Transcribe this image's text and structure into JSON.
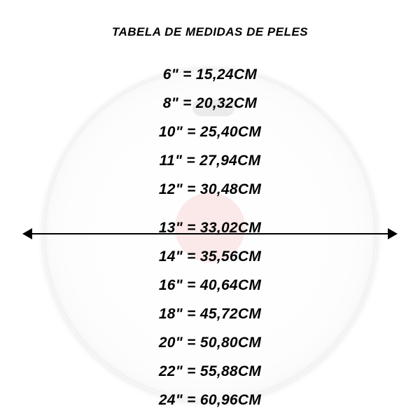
{
  "infographic": {
    "type": "infographic",
    "title": "TABELA DE MEDIDAS DE PELES",
    "title_fontsize": 17,
    "row_fontsize": 21,
    "font_style": "italic bold",
    "background_color": "#ffffff",
    "drumhead_color": "#fdfdfd",
    "accent_circle_color": "#f7d6d6",
    "text_color": "#000000",
    "arrow_color": "#000000",
    "measurements": [
      {
        "inches": "6\"",
        "cm": "15,24CM"
      },
      {
        "inches": "8\"",
        "cm": "20,32CM"
      },
      {
        "inches": "10\"",
        "cm": "25,40CM"
      },
      {
        "inches": "11\"",
        "cm": "27,94CM"
      },
      {
        "inches": "12\"",
        "cm": "30,48CM"
      },
      {
        "inches": "13\"",
        "cm": "33,02CM"
      },
      {
        "inches": "14\"",
        "cm": "35,56CM"
      },
      {
        "inches": "16\"",
        "cm": "40,64CM"
      },
      {
        "inches": "18\"",
        "cm": "45,72CM"
      },
      {
        "inches": "20\"",
        "cm": "50,80CM"
      },
      {
        "inches": "22\"",
        "cm": "55,88CM"
      },
      {
        "inches": "24\"",
        "cm": "60,96CM"
      }
    ]
  }
}
